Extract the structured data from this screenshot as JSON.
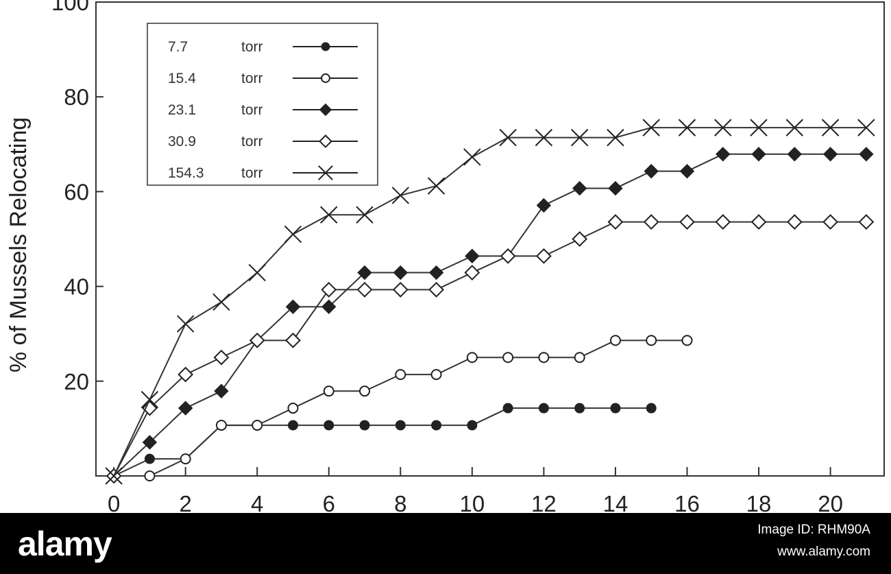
{
  "chart_data": {
    "type": "line",
    "title": "",
    "xlabel": "",
    "ylabel": "% of Mussels Relocating",
    "xlim": [
      -0.5,
      21.5
    ],
    "ylim": [
      0,
      100
    ],
    "x_ticks": [
      0,
      2,
      4,
      6,
      8,
      10,
      12,
      14,
      16,
      18,
      20
    ],
    "y_ticks": [
      20,
      40,
      60,
      80,
      100
    ],
    "grid": false,
    "legend": {
      "placement": "top-left",
      "unit": "torr"
    },
    "series": [
      {
        "name": "7.7",
        "marker": "filled-circle",
        "x": [
          0,
          1,
          2,
          3,
          4,
          5,
          6,
          7,
          8,
          9,
          10,
          11,
          12,
          13,
          14,
          15
        ],
        "y": [
          0,
          3.6,
          3.6,
          10.7,
          10.7,
          10.7,
          10.7,
          10.7,
          10.7,
          10.7,
          10.7,
          14.3,
          14.3,
          14.3,
          14.3,
          14.3
        ]
      },
      {
        "name": "15.4",
        "marker": "open-circle",
        "x": [
          0,
          1,
          2,
          3,
          4,
          5,
          6,
          7,
          8,
          9,
          10,
          11,
          12,
          13,
          14,
          15,
          16
        ],
        "y": [
          0,
          0,
          3.6,
          10.7,
          10.7,
          14.3,
          17.9,
          17.9,
          21.4,
          21.4,
          25.0,
          25.0,
          25.0,
          25.0,
          28.6,
          28.6,
          28.6
        ]
      },
      {
        "name": "23.1",
        "marker": "filled-diamond",
        "x": [
          0,
          1,
          2,
          3,
          4,
          5,
          6,
          7,
          8,
          9,
          10,
          11,
          12,
          13,
          14,
          15,
          16,
          17,
          18,
          19,
          20,
          21
        ],
        "y": [
          0,
          7.1,
          14.3,
          17.9,
          28.6,
          35.7,
          35.7,
          42.9,
          42.9,
          42.9,
          46.4,
          46.4,
          57.1,
          60.7,
          60.7,
          64.3,
          64.3,
          67.9,
          67.9,
          67.9,
          67.9,
          67.9
        ]
      },
      {
        "name": "30.9",
        "marker": "open-diamond",
        "x": [
          0,
          1,
          2,
          3,
          4,
          5,
          6,
          7,
          8,
          9,
          10,
          11,
          12,
          13,
          14,
          15,
          16,
          17,
          18,
          19,
          20,
          21
        ],
        "y": [
          0,
          14.3,
          21.4,
          25.0,
          28.6,
          28.6,
          39.3,
          39.3,
          39.3,
          39.3,
          42.9,
          46.4,
          46.4,
          50.0,
          53.6,
          53.6,
          53.6,
          53.6,
          53.6,
          53.6,
          53.6,
          53.6
        ]
      },
      {
        "name": "154.3",
        "marker": "x",
        "x": [
          0,
          1,
          2,
          3,
          4,
          5,
          6,
          7,
          8,
          9,
          10,
          11,
          12,
          13,
          14,
          15,
          16,
          17,
          18,
          19,
          20,
          21
        ],
        "y": [
          0,
          16.1,
          32.1,
          36.7,
          42.9,
          51.0,
          55.1,
          55.1,
          59.2,
          61.2,
          67.3,
          71.4,
          71.4,
          71.4,
          71.4,
          73.5,
          73.5,
          73.5,
          73.5,
          73.5,
          73.5,
          73.5
        ]
      }
    ]
  },
  "watermark": {
    "logo": "alamy",
    "image_id": "Image ID: RHM90A",
    "site": "www.alamy.com"
  }
}
